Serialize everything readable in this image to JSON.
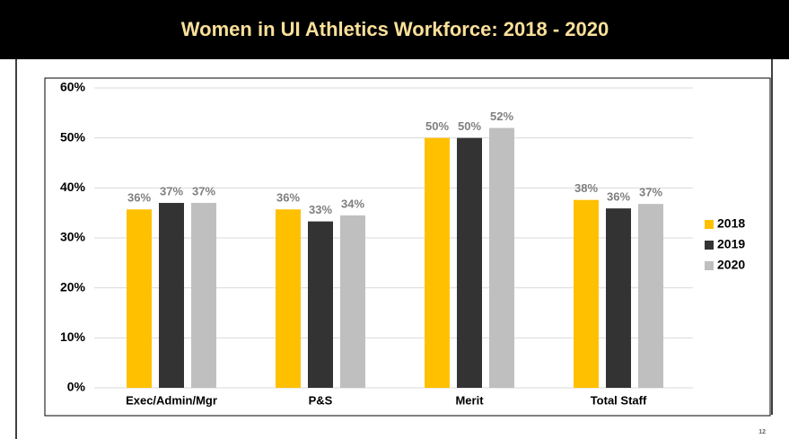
{
  "slide": {
    "title": "Women in UI Athletics Workforce:  2018 - 2020",
    "page_number": "12"
  },
  "chart_data": {
    "type": "bar",
    "categories": [
      "Exec/Admin/Mgr",
      "P&S",
      "Merit",
      "Total Staff"
    ],
    "series": [
      {
        "name": "2018",
        "color": "#ffc000",
        "values": [
          35.7,
          35.7,
          50,
          37.6
        ],
        "value_labels": [
          "36%",
          "36%",
          "50%",
          "38%"
        ]
      },
      {
        "name": "2019",
        "color": "#333333",
        "values": [
          37,
          33.3,
          50,
          35.9
        ],
        "value_labels": [
          "37%",
          "33%",
          "50%",
          "36%"
        ]
      },
      {
        "name": "2020",
        "color": "#bfbfbf",
        "values": [
          37,
          34.5,
          52,
          36.8
        ],
        "value_labels": [
          "37%",
          "34%",
          "52%",
          "37%"
        ]
      }
    ],
    "ylim": [
      0,
      60
    ],
    "yticks": [
      {
        "value": 0,
        "label": "0%"
      },
      {
        "value": 10,
        "label": "10%"
      },
      {
        "value": 20,
        "label": "20%"
      },
      {
        "value": 30,
        "label": "30%"
      },
      {
        "value": 40,
        "label": "40%"
      },
      {
        "value": 50,
        "label": "50%"
      },
      {
        "value": 60,
        "label": "60%"
      }
    ],
    "grid": true,
    "legend": "right"
  }
}
